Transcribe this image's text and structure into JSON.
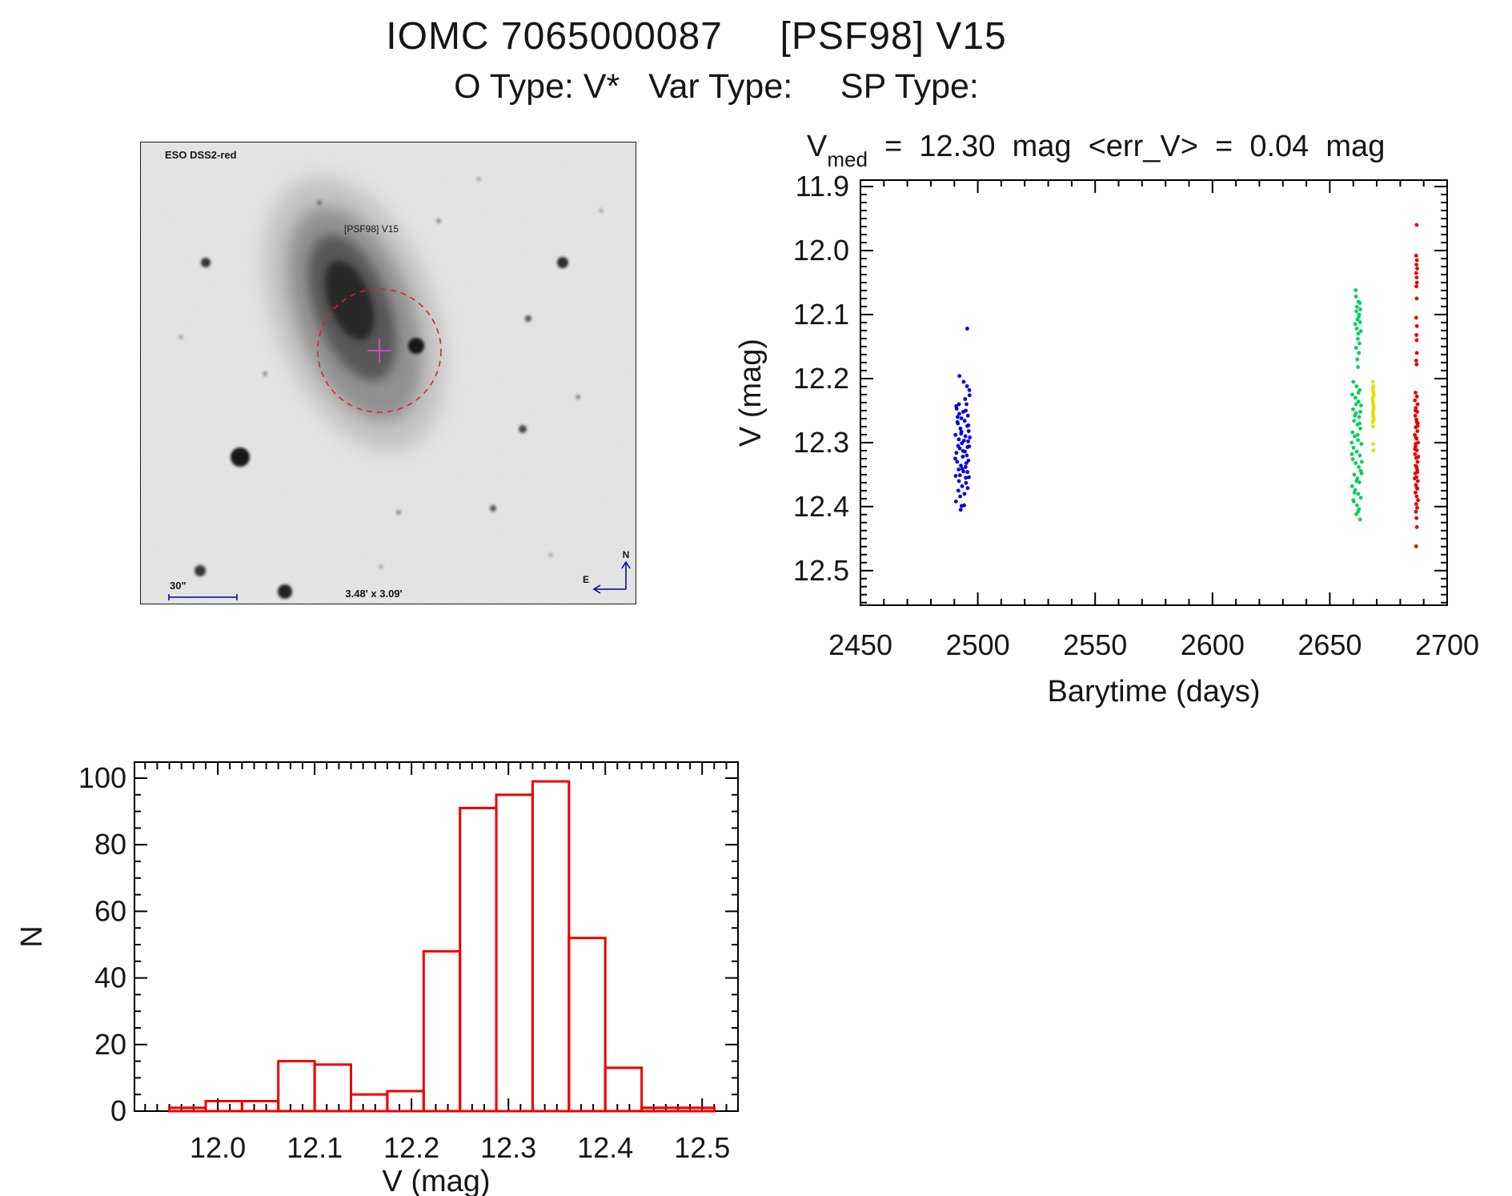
{
  "header": {
    "title": "IOMC 7065000087     [PSF98] V15",
    "subtitle": "O Type: V*   Var Type:     SP Type:"
  },
  "sky_image": {
    "survey": "ESO DSS2-red",
    "target": "[PSF98] V15",
    "scalebar": "30\"",
    "fov": "3.48' x 3.09'",
    "north": "N",
    "east": "E",
    "label_color": "#00009a",
    "target_color": "#cc2222",
    "circle_color": "#dd2222",
    "cross_color": "#c050c0"
  },
  "light_curve_title": {
    "v": "V",
    "sub": "med",
    "rest": "  =  12.30  mag  <err_V>  =  0.04  mag",
    "full_text": "V_med = 12.30 mag <err_V> = 0.04 mag"
  },
  "chart_data": [
    {
      "id": "light_curve",
      "type": "scatter",
      "title": "V_med = 12.30 mag <err_V> = 0.04 mag",
      "xlabel": "Barytime (days)",
      "ylabel": "V (mag)",
      "xlim": [
        2450,
        2700
      ],
      "ylim": [
        11.89,
        12.554
      ],
      "y_inverted": true,
      "grid": false,
      "xtick_vals": [
        2450,
        2500,
        2550,
        2600,
        2650,
        2700
      ],
      "xtick_labels": [
        "2450",
        "2500",
        "2550",
        "2600",
        "2650",
        "2700"
      ],
      "ytick_vals": [
        11.9,
        12.0,
        12.1,
        12.2,
        12.3,
        12.4,
        12.5
      ],
      "ytick_labels": [
        "11.9",
        "12.0",
        "12.1",
        "12.2",
        "12.3",
        "12.4",
        "12.5"
      ],
      "x_minor_step": 10,
      "y_minor_step": 0.0125,
      "series": [
        {
          "name": "epoch-blue",
          "color": "#0000e8",
          "points": [
            [
              2490.8,
              12.243
            ],
            [
              2492.1,
              12.255
            ],
            [
              2493.0,
              12.262
            ],
            [
              2491.5,
              12.27
            ],
            [
              2492.6,
              12.278
            ],
            [
              2493.8,
              12.252
            ],
            [
              2490.5,
              12.288
            ],
            [
              2491.9,
              12.295
            ],
            [
              2493.2,
              12.301
            ],
            [
              2492.3,
              12.309
            ],
            [
              2490.9,
              12.316
            ],
            [
              2493.6,
              12.322
            ],
            [
              2491.2,
              12.33
            ],
            [
              2492.8,
              12.336
            ],
            [
              2493.9,
              12.345
            ],
            [
              2490.6,
              12.352
            ],
            [
              2492.0,
              12.36
            ],
            [
              2493.3,
              12.368
            ],
            [
              2491.7,
              12.375
            ],
            [
              2492.5,
              12.384
            ],
            [
              2490.7,
              12.392
            ],
            [
              2493.1,
              12.399
            ],
            [
              2494.6,
              12.232
            ],
            [
              2495.2,
              12.24
            ],
            [
              2494.9,
              12.25
            ],
            [
              2495.8,
              12.258
            ],
            [
              2494.4,
              12.266
            ],
            [
              2495.5,
              12.274
            ],
            [
              2496.1,
              12.282
            ],
            [
              2494.7,
              12.29
            ],
            [
              2495.9,
              12.298
            ],
            [
              2496.3,
              12.306
            ],
            [
              2494.5,
              12.314
            ],
            [
              2495.3,
              12.32
            ],
            [
              2496.0,
              12.328
            ],
            [
              2494.8,
              12.338
            ],
            [
              2495.6,
              12.346
            ],
            [
              2496.2,
              12.354
            ],
            [
              2495.0,
              12.363
            ],
            [
              2495.7,
              12.371
            ],
            [
              2494.3,
              12.38
            ],
            [
              2496.4,
              12.218
            ],
            [
              2495.5,
              12.122
            ],
            [
              2492.2,
              12.196
            ],
            [
              2494.0,
              12.205
            ],
            [
              2495.4,
              12.212
            ],
            [
              2496.5,
              12.226
            ],
            [
              2491.0,
              12.247
            ],
            [
              2492.9,
              12.286
            ],
            [
              2494.1,
              12.297
            ],
            [
              2495.1,
              12.332
            ],
            [
              2493.4,
              12.341
            ],
            [
              2492.4,
              12.351
            ],
            [
              2491.3,
              12.268
            ],
            [
              2493.7,
              12.313
            ],
            [
              2496.6,
              12.292
            ],
            [
              2490.4,
              12.325
            ],
            [
              2491.6,
              12.305
            ],
            [
              2492.7,
              12.405
            ],
            [
              2494.2,
              12.398
            ],
            [
              2491.4,
              12.26
            ],
            [
              2493.0,
              12.283
            ],
            [
              2495.6,
              12.307
            ],
            [
              2496.0,
              12.273
            ],
            [
              2492.0,
              12.24
            ],
            [
              2494.9,
              12.355
            ],
            [
              2491.8,
              12.342
            ]
          ]
        },
        {
          "name": "epoch-green",
          "color": "#00d05a",
          "points": [
            [
              2661.0,
              12.062
            ],
            [
              2661.2,
              12.072
            ],
            [
              2662.2,
              12.08
            ],
            [
              2661.6,
              12.088
            ],
            [
              2662.8,
              12.082
            ],
            [
              2661.3,
              12.095
            ],
            [
              2662.5,
              12.1
            ],
            [
              2663.0,
              12.092
            ],
            [
              2661.8,
              12.108
            ],
            [
              2662.3,
              12.104
            ],
            [
              2660.8,
              12.115
            ],
            [
              2662.9,
              12.112
            ],
            [
              2661.5,
              12.122
            ],
            [
              2662.1,
              12.13
            ],
            [
              2663.2,
              12.126
            ],
            [
              2661.9,
              12.138
            ],
            [
              2662.6,
              12.145
            ],
            [
              2661.2,
              12.152
            ],
            [
              2662.4,
              12.16
            ],
            [
              2661.7,
              12.17
            ],
            [
              2662.0,
              12.182
            ],
            [
              2660.0,
              12.205
            ],
            [
              2661.4,
              12.212
            ],
            [
              2662.7,
              12.218
            ],
            [
              2659.6,
              12.225
            ],
            [
              2660.9,
              12.23
            ],
            [
              2662.2,
              12.236
            ],
            [
              2663.3,
              12.242
            ],
            [
              2659.9,
              12.248
            ],
            [
              2661.1,
              12.254
            ],
            [
              2662.5,
              12.26
            ],
            [
              2660.3,
              12.266
            ],
            [
              2661.8,
              12.272
            ],
            [
              2663.0,
              12.278
            ],
            [
              2659.7,
              12.284
            ],
            [
              2660.6,
              12.29
            ],
            [
              2662.0,
              12.296
            ],
            [
              2663.4,
              12.302
            ],
            [
              2660.1,
              12.308
            ],
            [
              2661.5,
              12.314
            ],
            [
              2662.8,
              12.32
            ],
            [
              2659.8,
              12.326
            ],
            [
              2661.0,
              12.332
            ],
            [
              2662.3,
              12.338
            ],
            [
              2663.1,
              12.344
            ],
            [
              2660.4,
              12.35
            ],
            [
              2661.7,
              12.356
            ],
            [
              2662.6,
              12.362
            ],
            [
              2659.5,
              12.368
            ],
            [
              2660.8,
              12.374
            ],
            [
              2662.1,
              12.38
            ],
            [
              2663.2,
              12.386
            ],
            [
              2660.2,
              12.392
            ],
            [
              2661.6,
              12.398
            ],
            [
              2662.4,
              12.404
            ],
            [
              2661.3,
              12.412
            ],
            [
              2662.9,
              12.42
            ],
            [
              2660.7,
              12.258
            ],
            [
              2661.9,
              12.288
            ],
            [
              2659.4,
              12.318
            ],
            [
              2663.5,
              12.348
            ],
            [
              2660.5,
              12.378
            ],
            [
              2662.0,
              12.408
            ],
            [
              2661.2,
              12.24
            ],
            [
              2662.7,
              12.27
            ],
            [
              2659.3,
              12.3
            ],
            [
              2663.6,
              12.33
            ],
            [
              2661.4,
              12.36
            ],
            [
              2660.0,
              12.39
            ],
            [
              2662.2,
              12.222
            ],
            [
              2663.0,
              12.252
            ]
          ]
        },
        {
          "name": "epoch-yellow",
          "color": "#e2e200",
          "points": [
            [
              2668.3,
              12.205
            ],
            [
              2668.6,
              12.212
            ],
            [
              2668.4,
              12.219
            ],
            [
              2668.7,
              12.226
            ],
            [
              2668.3,
              12.233
            ],
            [
              2668.5,
              12.24
            ],
            [
              2668.7,
              12.247
            ],
            [
              2668.4,
              12.254
            ],
            [
              2668.6,
              12.261
            ],
            [
              2668.3,
              12.268
            ],
            [
              2668.5,
              12.275
            ],
            [
              2668.6,
              12.222
            ],
            [
              2668.4,
              12.236
            ],
            [
              2668.5,
              12.25
            ],
            [
              2668.7,
              12.264
            ],
            [
              2668.4,
              12.23
            ],
            [
              2668.6,
              12.244
            ],
            [
              2668.5,
              12.258
            ],
            [
              2668.3,
              12.215
            ],
            [
              2668.5,
              12.302
            ],
            [
              2668.6,
              12.312
            ]
          ]
        },
        {
          "name": "epoch-red",
          "color": "#e60000",
          "points": [
            [
              2687.0,
              11.96
            ],
            [
              2686.8,
              12.008
            ],
            [
              2687.1,
              12.015
            ],
            [
              2686.9,
              12.022
            ],
            [
              2687.2,
              12.028
            ],
            [
              2686.8,
              12.035
            ],
            [
              2687.0,
              12.042
            ],
            [
              2687.1,
              12.05
            ],
            [
              2686.9,
              12.056
            ],
            [
              2687.0,
              12.075
            ],
            [
              2686.8,
              12.105
            ],
            [
              2687.1,
              12.118
            ],
            [
              2686.9,
              12.132
            ],
            [
              2687.0,
              12.14
            ],
            [
              2687.1,
              12.16
            ],
            [
              2686.8,
              12.172
            ],
            [
              2687.0,
              12.178
            ],
            [
              2686.5,
              12.222
            ],
            [
              2687.1,
              12.228
            ],
            [
              2686.3,
              12.234
            ],
            [
              2687.4,
              12.24
            ],
            [
              2686.7,
              12.246
            ],
            [
              2687.2,
              12.252
            ],
            [
              2686.4,
              12.258
            ],
            [
              2686.9,
              12.264
            ],
            [
              2687.5,
              12.27
            ],
            [
              2686.6,
              12.276
            ],
            [
              2687.3,
              12.282
            ],
            [
              2686.2,
              12.288
            ],
            [
              2687.0,
              12.294
            ],
            [
              2687.6,
              12.3
            ],
            [
              2686.5,
              12.306
            ],
            [
              2687.1,
              12.312
            ],
            [
              2686.3,
              12.318
            ],
            [
              2686.8,
              12.324
            ],
            [
              2687.4,
              12.33
            ],
            [
              2686.6,
              12.336
            ],
            [
              2687.2,
              12.342
            ],
            [
              2686.4,
              12.348
            ],
            [
              2686.9,
              12.354
            ],
            [
              2687.5,
              12.36
            ],
            [
              2686.7,
              12.366
            ],
            [
              2687.3,
              12.372
            ],
            [
              2686.5,
              12.378
            ],
            [
              2687.0,
              12.384
            ],
            [
              2687.6,
              12.39
            ],
            [
              2686.8,
              12.396
            ],
            [
              2687.2,
              12.402
            ],
            [
              2686.3,
              12.31
            ],
            [
              2686.7,
              12.292
            ],
            [
              2687.4,
              12.274
            ],
            [
              2686.9,
              12.338
            ],
            [
              2687.7,
              12.322
            ],
            [
              2686.2,
              12.356
            ],
            [
              2687.1,
              12.268
            ],
            [
              2686.6,
              12.302
            ],
            [
              2687.3,
              12.346
            ],
            [
              2686.5,
              12.25
            ],
            [
              2687.0,
              12.37
            ],
            [
              2686.7,
              12.408
            ],
            [
              2686.9,
              12.418
            ],
            [
              2687.1,
              12.432
            ],
            [
              2686.8,
              12.462
            ]
          ]
        }
      ]
    },
    {
      "id": "v_histogram",
      "type": "bar",
      "title": "",
      "xlabel": "V (mag)",
      "ylabel": "N",
      "xlim": [
        11.914,
        12.537
      ],
      "ylim": [
        0,
        104.8
      ],
      "grid": false,
      "xtick_vals": [
        12.0,
        12.1,
        12.2,
        12.3,
        12.4,
        12.5
      ],
      "xtick_labels": [
        "12.0",
        "12.1",
        "12.2",
        "12.3",
        "12.4",
        "12.5"
      ],
      "ytick_vals": [
        0,
        20,
        40,
        60,
        80,
        100
      ],
      "ytick_labels": [
        "0",
        "20",
        "40",
        "60",
        "80",
        "100"
      ],
      "x_minor_step": 0.0125,
      "y_minor_step": 5,
      "bin_start": 11.95,
      "bin_width": 0.0375,
      "values": [
        1,
        3,
        3,
        15,
        14,
        5,
        6,
        48,
        91,
        95,
        99,
        52,
        13,
        1,
        1
      ],
      "color": "#ee0000"
    }
  ]
}
